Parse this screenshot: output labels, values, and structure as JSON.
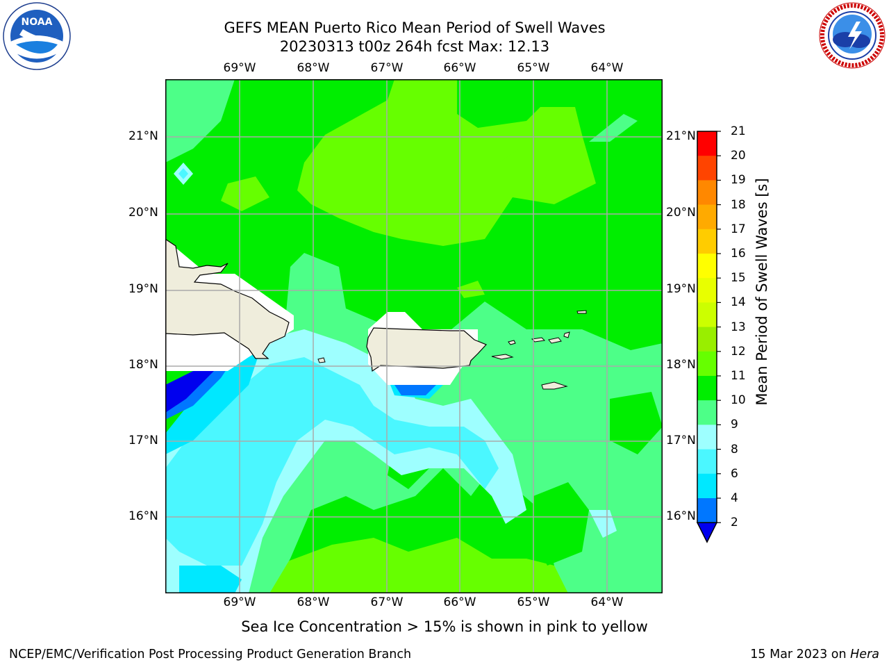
{
  "header": {
    "title_line1": "GEFS MEAN Puerto Rico Mean Period of Swell Waves",
    "title_line2": "20230313 t00z 264h fcst   Max: 12.13"
  },
  "logos": {
    "left": {
      "name": "noaa-logo",
      "text": "NOAA",
      "ring_text": "NATIONAL OCEANIC AND ATMOSPHERIC ADMINISTRATION · U.S. DEPARTMENT OF COMMERCE"
    },
    "right": {
      "name": "nws-logo",
      "ring_text": "NATIONAL WEATHER SERVICE"
    }
  },
  "map": {
    "lon_labels": [
      "69°W",
      "68°W",
      "67°W",
      "66°W",
      "65°W",
      "64°W"
    ],
    "lat_labels": [
      "21°N",
      "20°N",
      "19°N",
      "18°N",
      "17°N",
      "16°N"
    ],
    "grid": true,
    "land_color": "#efeddc",
    "mask_color": "#ffffff"
  },
  "colorbar": {
    "label": "Mean Period of Swell Waves [s]",
    "ticks": [
      "2",
      "4",
      "6",
      "8",
      "9",
      "10",
      "11",
      "12",
      "13",
      "14",
      "15",
      "16",
      "17",
      "18",
      "19",
      "20",
      "21"
    ],
    "colors": [
      "#0000ff",
      "#0077ff",
      "#00e8ff",
      "#4bf7ff",
      "#9effff",
      "#4dff88",
      "#00ee00",
      "#66ff00",
      "#99ee00",
      "#ccff00",
      "#e8ff00",
      "#ffff00",
      "#ffcc00",
      "#ffaa00",
      "#ff8800",
      "#ff4400",
      "#ff0000"
    ],
    "under_color": "#0000ee"
  },
  "subtitle": "Sea Ice Concentration > 15% is shown in pink to yellow",
  "footer": {
    "left": "NCEP/EMC/Verification Post Processing Product Generation Branch",
    "right_prefix": "15 Mar 2023 on ",
    "right_machine": "Hera"
  }
}
